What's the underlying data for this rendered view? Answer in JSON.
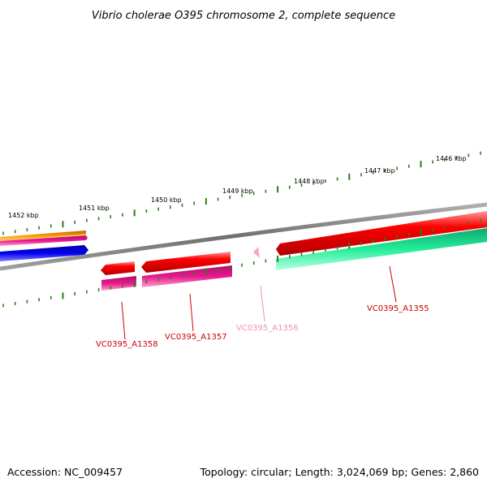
{
  "title": "Vibrio cholerae O395 chromosome 2, complete sequence",
  "scale_labels": [
    "1452 kbp",
    "1451 kbp",
    "1450 kbp",
    "1449 kbp",
    "1448 kbp",
    "1447 kbp",
    "1446 kbp"
  ],
  "genes": [
    {
      "label": "VC0395_A1358",
      "label_color": "#cc0000"
    },
    {
      "label": "VC0395_A1357",
      "label_color": "#cc0000"
    },
    {
      "label": "VC0395_A1356",
      "label_color": "#f090c0"
    },
    {
      "label": "VC0395_A1355",
      "label_color": "#cc0000"
    }
  ],
  "colors": {
    "backbone": "#808080",
    "tick": "#2e7d1a",
    "cds": "#ff0000",
    "gene_pink": "#e6188c",
    "orange": "#ff9900",
    "blue": "#0000ee",
    "green": "#22ee99",
    "light_pink": "#f6a6d2"
  },
  "footer": {
    "accession": "Accession: NC_009457",
    "summary": "Topology: circular; Length: 3,024,069 bp; Genes: 2,860"
  }
}
